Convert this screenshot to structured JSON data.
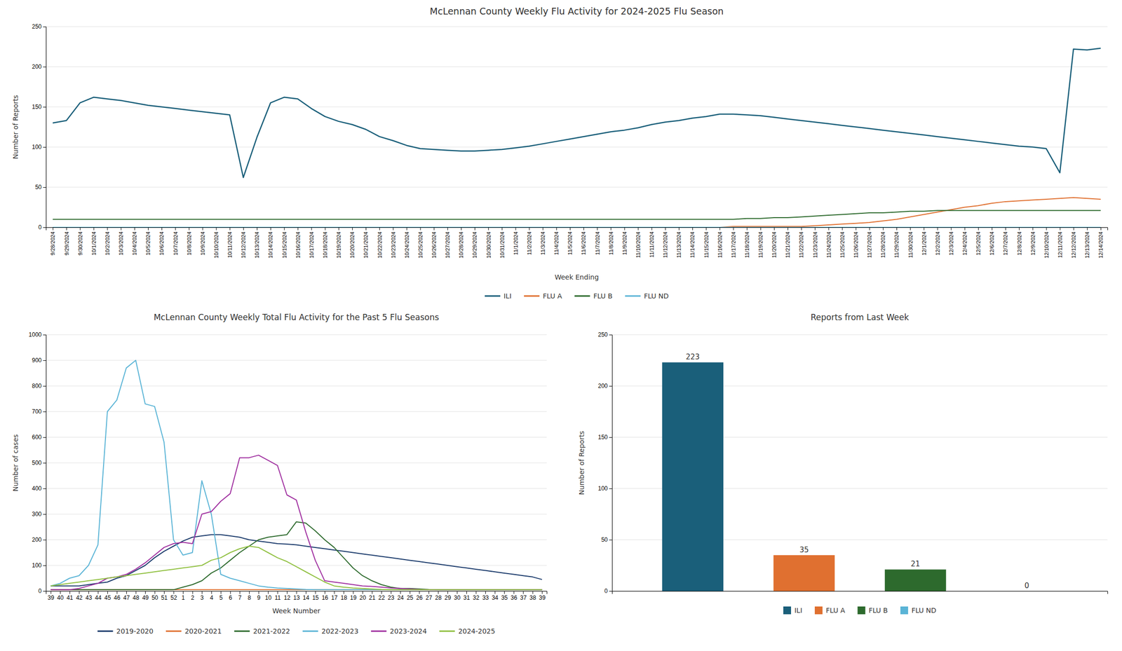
{
  "chart_data": [
    {
      "type": "line",
      "title": "McLennan County Weekly Flu Activity for 2024-2025 Flu Season",
      "x_label": "Week Ending",
      "y_label": "Number of Reports",
      "categories": [
        "9/28/2024",
        "9/29/2024",
        "9/30/2024",
        "10/1/2024",
        "10/2/2024",
        "10/3/2024",
        "10/4/2024",
        "10/5/2024",
        "10/6/2024",
        "10/7/2024",
        "10/8/2024",
        "10/9/2024",
        "10/10/2024",
        "10/11/2024",
        "10/12/2024",
        "10/13/2024",
        "10/14/2024",
        "10/15/2024",
        "10/16/2024",
        "10/17/2024",
        "10/18/2024",
        "10/19/2024",
        "10/20/2024",
        "10/21/2024",
        "10/22/2024",
        "10/23/2024",
        "10/24/2024",
        "10/25/2024",
        "10/26/2024",
        "10/27/2024",
        "10/28/2024",
        "10/29/2024",
        "10/30/2024",
        "10/31/2024",
        "11/1/2024",
        "11/2/2024",
        "11/3/2024",
        "11/4/2024",
        "11/5/2024",
        "11/6/2024",
        "11/7/2024",
        "11/8/2024",
        "11/9/2024",
        "11/10/2024",
        "11/11/2024",
        "11/12/2024",
        "11/13/2024",
        "11/14/2024",
        "11/15/2024",
        "11/16/2024",
        "11/17/2024",
        "11/18/2024",
        "11/19/2024",
        "11/20/2024",
        "11/21/2024",
        "11/22/2024",
        "11/23/2024",
        "11/24/2024",
        "11/25/2024",
        "11/26/2024",
        "11/27/2024",
        "11/28/2024",
        "11/29/2024",
        "11/30/2024",
        "12/1/2024",
        "12/2/2024",
        "12/3/2024",
        "12/4/2024",
        "12/5/2024",
        "12/6/2024",
        "12/7/2024",
        "12/8/2024",
        "12/9/2024",
        "12/10/2024",
        "12/11/2024",
        "12/12/2024",
        "12/13/2024",
        "12/14/2024"
      ],
      "series": [
        {
          "name": "ILI",
          "color": "#1a5f7a",
          "values": [
            130,
            133,
            155,
            162,
            160,
            158,
            155,
            152,
            150,
            148,
            146,
            144,
            142,
            140,
            62,
            112,
            155,
            162,
            160,
            148,
            138,
            132,
            128,
            122,
            113,
            108,
            102,
            98,
            97,
            96,
            95,
            95,
            96,
            97,
            99,
            101,
            104,
            107,
            110,
            113,
            116,
            119,
            121,
            124,
            128,
            131,
            133,
            136,
            138,
            141,
            141,
            140,
            139,
            137,
            135,
            133,
            131,
            129,
            127,
            125,
            123,
            121,
            119,
            117,
            115,
            113,
            111,
            109,
            107,
            105,
            103,
            101,
            100,
            98,
            68,
            222,
            221,
            223
          ]
        },
        {
          "name": "FLU A",
          "color": "#e07030",
          "values": [
            0,
            0,
            0,
            0,
            0,
            0,
            0,
            0,
            0,
            0,
            0,
            0,
            0,
            0,
            0,
            0,
            0,
            0,
            0,
            0,
            0,
            0,
            0,
            0,
            0,
            0,
            0,
            0,
            0,
            0,
            0,
            0,
            0,
            0,
            0,
            0,
            0,
            0,
            0,
            0,
            0,
            0,
            0,
            0,
            0,
            0,
            0,
            0,
            0,
            0,
            1,
            1,
            1,
            1,
            1,
            1,
            2,
            3,
            4,
            5,
            6,
            8,
            10,
            13,
            16,
            19,
            22,
            25,
            27,
            30,
            32,
            33,
            34,
            35,
            36,
            37,
            36,
            35
          ]
        },
        {
          "name": "FLU B",
          "color": "#2d6a2d",
          "values": [
            10,
            10,
            10,
            10,
            10,
            10,
            10,
            10,
            10,
            10,
            10,
            10,
            10,
            10,
            10,
            10,
            10,
            10,
            10,
            10,
            10,
            10,
            10,
            10,
            10,
            10,
            10,
            10,
            10,
            10,
            10,
            10,
            10,
            10,
            10,
            10,
            10,
            10,
            10,
            10,
            10,
            10,
            10,
            10,
            10,
            10,
            10,
            10,
            10,
            10,
            10,
            11,
            11,
            12,
            12,
            13,
            14,
            15,
            16,
            17,
            18,
            18,
            19,
            20,
            20,
            21,
            21,
            21,
            21,
            21,
            21,
            21,
            21,
            21,
            21,
            21,
            21,
            21
          ]
        },
        {
          "name": "FLU ND",
          "color": "#5ab4d6",
          "values": [
            0,
            0,
            0,
            0,
            0,
            0,
            0,
            0,
            0,
            0,
            0,
            0,
            0,
            0,
            0,
            0,
            0,
            0,
            0,
            0,
            0,
            0,
            0,
            0,
            0,
            0,
            0,
            0,
            0,
            0,
            0,
            0,
            0,
            0,
            0,
            0,
            0,
            0,
            0,
            0,
            0,
            0,
            0,
            0,
            0,
            0,
            0,
            0,
            0,
            0,
            0,
            0,
            0,
            0,
            0,
            0,
            0,
            0,
            0,
            0,
            0,
            0,
            0,
            0,
            0,
            0,
            0,
            0,
            0,
            0,
            0,
            0,
            0,
            0,
            0,
            0,
            0,
            0
          ]
        }
      ],
      "ylim": [
        0,
        250
      ],
      "yticks": [
        0,
        50,
        100,
        150,
        200,
        250
      ],
      "grid": true,
      "legend": "bottom"
    },
    {
      "type": "line",
      "title": "McLennan County Weekly Total Flu Activity for the Past 5 Flu Seasons",
      "x_label": "Week Number",
      "y_label": "Number of cases",
      "categories": [
        "39",
        "40",
        "41",
        "42",
        "43",
        "44",
        "45",
        "46",
        "47",
        "48",
        "49",
        "50",
        "51",
        "52",
        "1",
        "2",
        "3",
        "4",
        "5",
        "6",
        "7",
        "8",
        "9",
        "10",
        "11",
        "12",
        "13",
        "14",
        "15",
        "16",
        "17",
        "18",
        "19",
        "20",
        "21",
        "22",
        "23",
        "24",
        "25",
        "26",
        "27",
        "28",
        "29",
        "30",
        "31",
        "32",
        "33",
        "34",
        "35",
        "36",
        "37",
        "38",
        "39"
      ],
      "series": [
        {
          "name": "2019-2020",
          "color": "#1a3a6b",
          "values": [
            20,
            20,
            20,
            20,
            25,
            30,
            35,
            50,
            60,
            80,
            100,
            130,
            155,
            175,
            195,
            210,
            215,
            220,
            220,
            215,
            210,
            200,
            195,
            190,
            185,
            183,
            180,
            175,
            170,
            165,
            160,
            155,
            150,
            145,
            140,
            135,
            130,
            125,
            120,
            115,
            110,
            105,
            100,
            95,
            90,
            85,
            80,
            75,
            70,
            65,
            60,
            55,
            45
          ]
        },
        {
          "name": "2020-2021",
          "color": "#e07030",
          "values": [
            5,
            5,
            5,
            5,
            5,
            5,
            5,
            5,
            5,
            5,
            5,
            5,
            5,
            5,
            5,
            5,
            5,
            5,
            5,
            5,
            5,
            5,
            5,
            5,
            5,
            5,
            5,
            5,
            5,
            5,
            5,
            5,
            5,
            5,
            5,
            5,
            5,
            5,
            5,
            5,
            5,
            5,
            5,
            5,
            5,
            5,
            5,
            5,
            5,
            5,
            5,
            5,
            5
          ]
        },
        {
          "name": "2021-2022",
          "color": "#2d6a2d",
          "values": [
            5,
            5,
            5,
            5,
            5,
            5,
            5,
            5,
            5,
            5,
            5,
            5,
            5,
            5,
            15,
            25,
            40,
            70,
            90,
            120,
            150,
            175,
            200,
            210,
            215,
            220,
            270,
            265,
            235,
            200,
            170,
            130,
            90,
            60,
            40,
            25,
            15,
            10,
            10,
            8,
            6,
            5,
            5,
            5,
            5,
            5,
            5,
            5,
            5,
            5,
            5,
            5,
            5
          ]
        },
        {
          "name": "2022-2023",
          "color": "#5ab4d6",
          "values": [
            20,
            30,
            50,
            60,
            100,
            180,
            700,
            745,
            870,
            900,
            730,
            720,
            580,
            200,
            140,
            150,
            430,
            300,
            65,
            50,
            40,
            30,
            20,
            15,
            12,
            10,
            8,
            6,
            5,
            5,
            5,
            5,
            5,
            5,
            5,
            5,
            5,
            5,
            5,
            5,
            5,
            5,
            5,
            5,
            5,
            5,
            5,
            5,
            5,
            5,
            5,
            5,
            5
          ]
        },
        {
          "name": "2023-2024",
          "color": "#a030a0",
          "values": [
            5,
            5,
            5,
            10,
            20,
            30,
            50,
            55,
            65,
            85,
            110,
            140,
            170,
            185,
            190,
            185,
            300,
            310,
            350,
            380,
            520,
            520,
            530,
            510,
            490,
            375,
            355,
            230,
            120,
            40,
            35,
            30,
            25,
            20,
            18,
            15,
            12,
            10,
            8,
            6,
            5,
            5,
            5,
            5,
            5,
            5,
            5,
            5,
            5,
            5,
            5,
            5,
            5
          ]
        },
        {
          "name": "2024-2025",
          "color": "#90c040",
          "values": [
            20,
            25,
            30,
            35,
            40,
            45,
            50,
            55,
            60,
            65,
            70,
            75,
            80,
            85,
            90,
            95,
            100,
            120,
            130,
            150,
            165,
            175,
            170,
            150,
            130,
            115,
            95,
            75,
            55,
            35,
            20,
            15,
            12,
            10,
            8,
            6,
            5,
            5,
            5,
            5,
            5,
            5,
            5,
            5,
            5,
            5,
            5,
            5,
            5,
            5,
            5,
            5,
            5
          ]
        }
      ],
      "ylim": [
        0,
        1000
      ],
      "yticks": [
        0,
        100,
        200,
        300,
        400,
        500,
        600,
        700,
        800,
        900,
        1000
      ],
      "grid": true,
      "legend": "bottom"
    },
    {
      "type": "bar",
      "title": "Reports from Last Week",
      "y_label": "Number of Reports",
      "categories": [
        "ILI",
        "FLU A",
        "FLU B",
        "FLU ND"
      ],
      "values": [
        223,
        35,
        21,
        0
      ],
      "colors": [
        "#1a5f7a",
        "#e07030",
        "#2d6a2d",
        "#5ab4d6"
      ],
      "ylim": [
        0,
        250
      ],
      "yticks": [
        0,
        50,
        100,
        150,
        200,
        250
      ],
      "grid": true,
      "data_labels": true,
      "tick_labels": "y",
      "legend": "bottom"
    }
  ]
}
